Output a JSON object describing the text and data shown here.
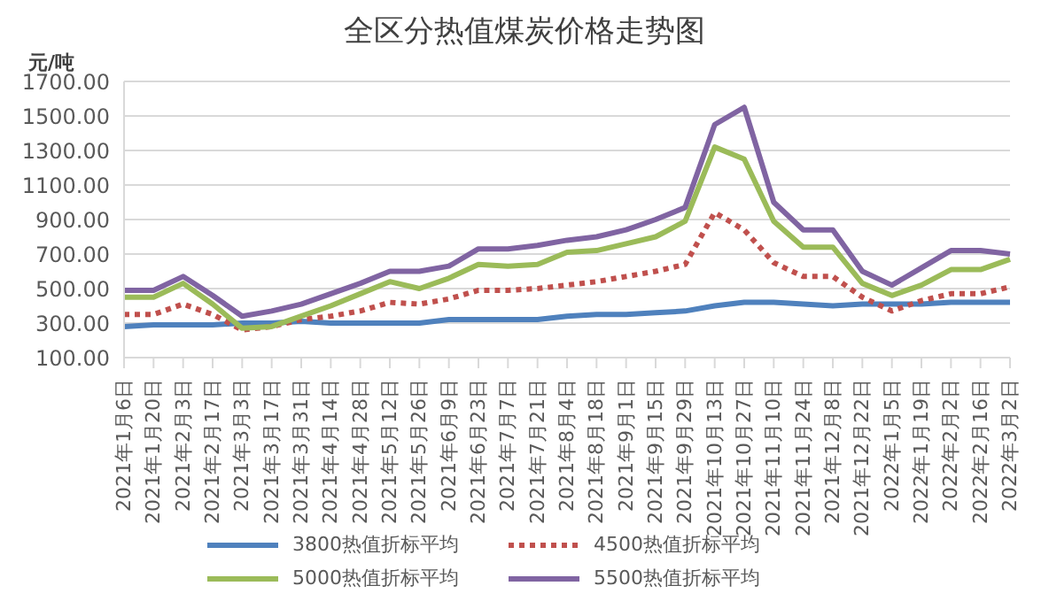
{
  "chart_data": {
    "type": "line",
    "title": "全区分热值煤炭价格走势图",
    "ylabel": "元/吨",
    "categories": [
      "2021年1月6日",
      "2021年1月20日",
      "2021年2月3日",
      "2021年2月17日",
      "2021年3月3日",
      "2021年3月17日",
      "2021年3月31日",
      "2021年4月14日",
      "2021年4月28日",
      "2021年5月12日",
      "2021年5月26日",
      "2021年6月9日",
      "2021年6月23日",
      "2021年7月7日",
      "2021年7月21日",
      "2021年8月4日",
      "2021年8月18日",
      "2021年9月1日",
      "2021年9月15日",
      "2021年9月29日",
      "2021年10月13日",
      "2021年10月27日",
      "2021年11月10日",
      "2021年11月24日",
      "2021年12月8日",
      "2021年12月22日",
      "2022年1月5日",
      "2022年1月19日",
      "2022年2月2日",
      "2022年2月16日",
      "2022年3月2日"
    ],
    "series": [
      {
        "name": "3800热值折标平均",
        "color": "#4f81bd",
        "line_style": "solid",
        "values": [
          280,
          290,
          290,
          290,
          300,
          300,
          310,
          300,
          300,
          300,
          300,
          320,
          320,
          320,
          320,
          340,
          350,
          350,
          360,
          370,
          400,
          420,
          420,
          410,
          400,
          410,
          410,
          410,
          420,
          420,
          420
        ]
      },
      {
        "name": "4500热值折标平均",
        "color": "#c0504d",
        "line_style": "dotted",
        "values": [
          350,
          350,
          410,
          350,
          260,
          280,
          320,
          340,
          370,
          420,
          410,
          440,
          490,
          490,
          500,
          520,
          540,
          570,
          600,
          640,
          940,
          840,
          650,
          570,
          570,
          450,
          370,
          430,
          470,
          470,
          510
        ]
      },
      {
        "name": "5000热值折标平均",
        "color": "#9bbb59",
        "line_style": "solid",
        "values": [
          450,
          450,
          530,
          410,
          270,
          280,
          340,
          400,
          470,
          540,
          500,
          560,
          640,
          630,
          640,
          710,
          720,
          760,
          800,
          890,
          1320,
          1250,
          890,
          740,
          740,
          530,
          460,
          520,
          610,
          610,
          670
        ]
      },
      {
        "name": "5500热值折标平均",
        "color": "#8064a2",
        "line_style": "solid",
        "values": [
          490,
          490,
          570,
          460,
          340,
          370,
          410,
          470,
          530,
          600,
          600,
          630,
          730,
          730,
          750,
          780,
          800,
          840,
          900,
          970,
          1450,
          1550,
          1000,
          840,
          840,
          600,
          520,
          620,
          720,
          720,
          700
        ]
      }
    ],
    "ylim": [
      100,
      1700
    ],
    "yticks": [
      {
        "value": 100,
        "label": "100.00"
      },
      {
        "value": 300,
        "label": "300.00"
      },
      {
        "value": 500,
        "label": "500.00"
      },
      {
        "value": 700,
        "label": "700.00"
      },
      {
        "value": 900,
        "label": "900.00"
      },
      {
        "value": 1100,
        "label": "1100.00"
      },
      {
        "value": 1300,
        "label": "1300.00"
      },
      {
        "value": 1500,
        "label": "1500.00"
      },
      {
        "value": 1700,
        "label": "1700.00"
      }
    ],
    "grid": "y",
    "legend": "bottom",
    "marker": "none"
  }
}
